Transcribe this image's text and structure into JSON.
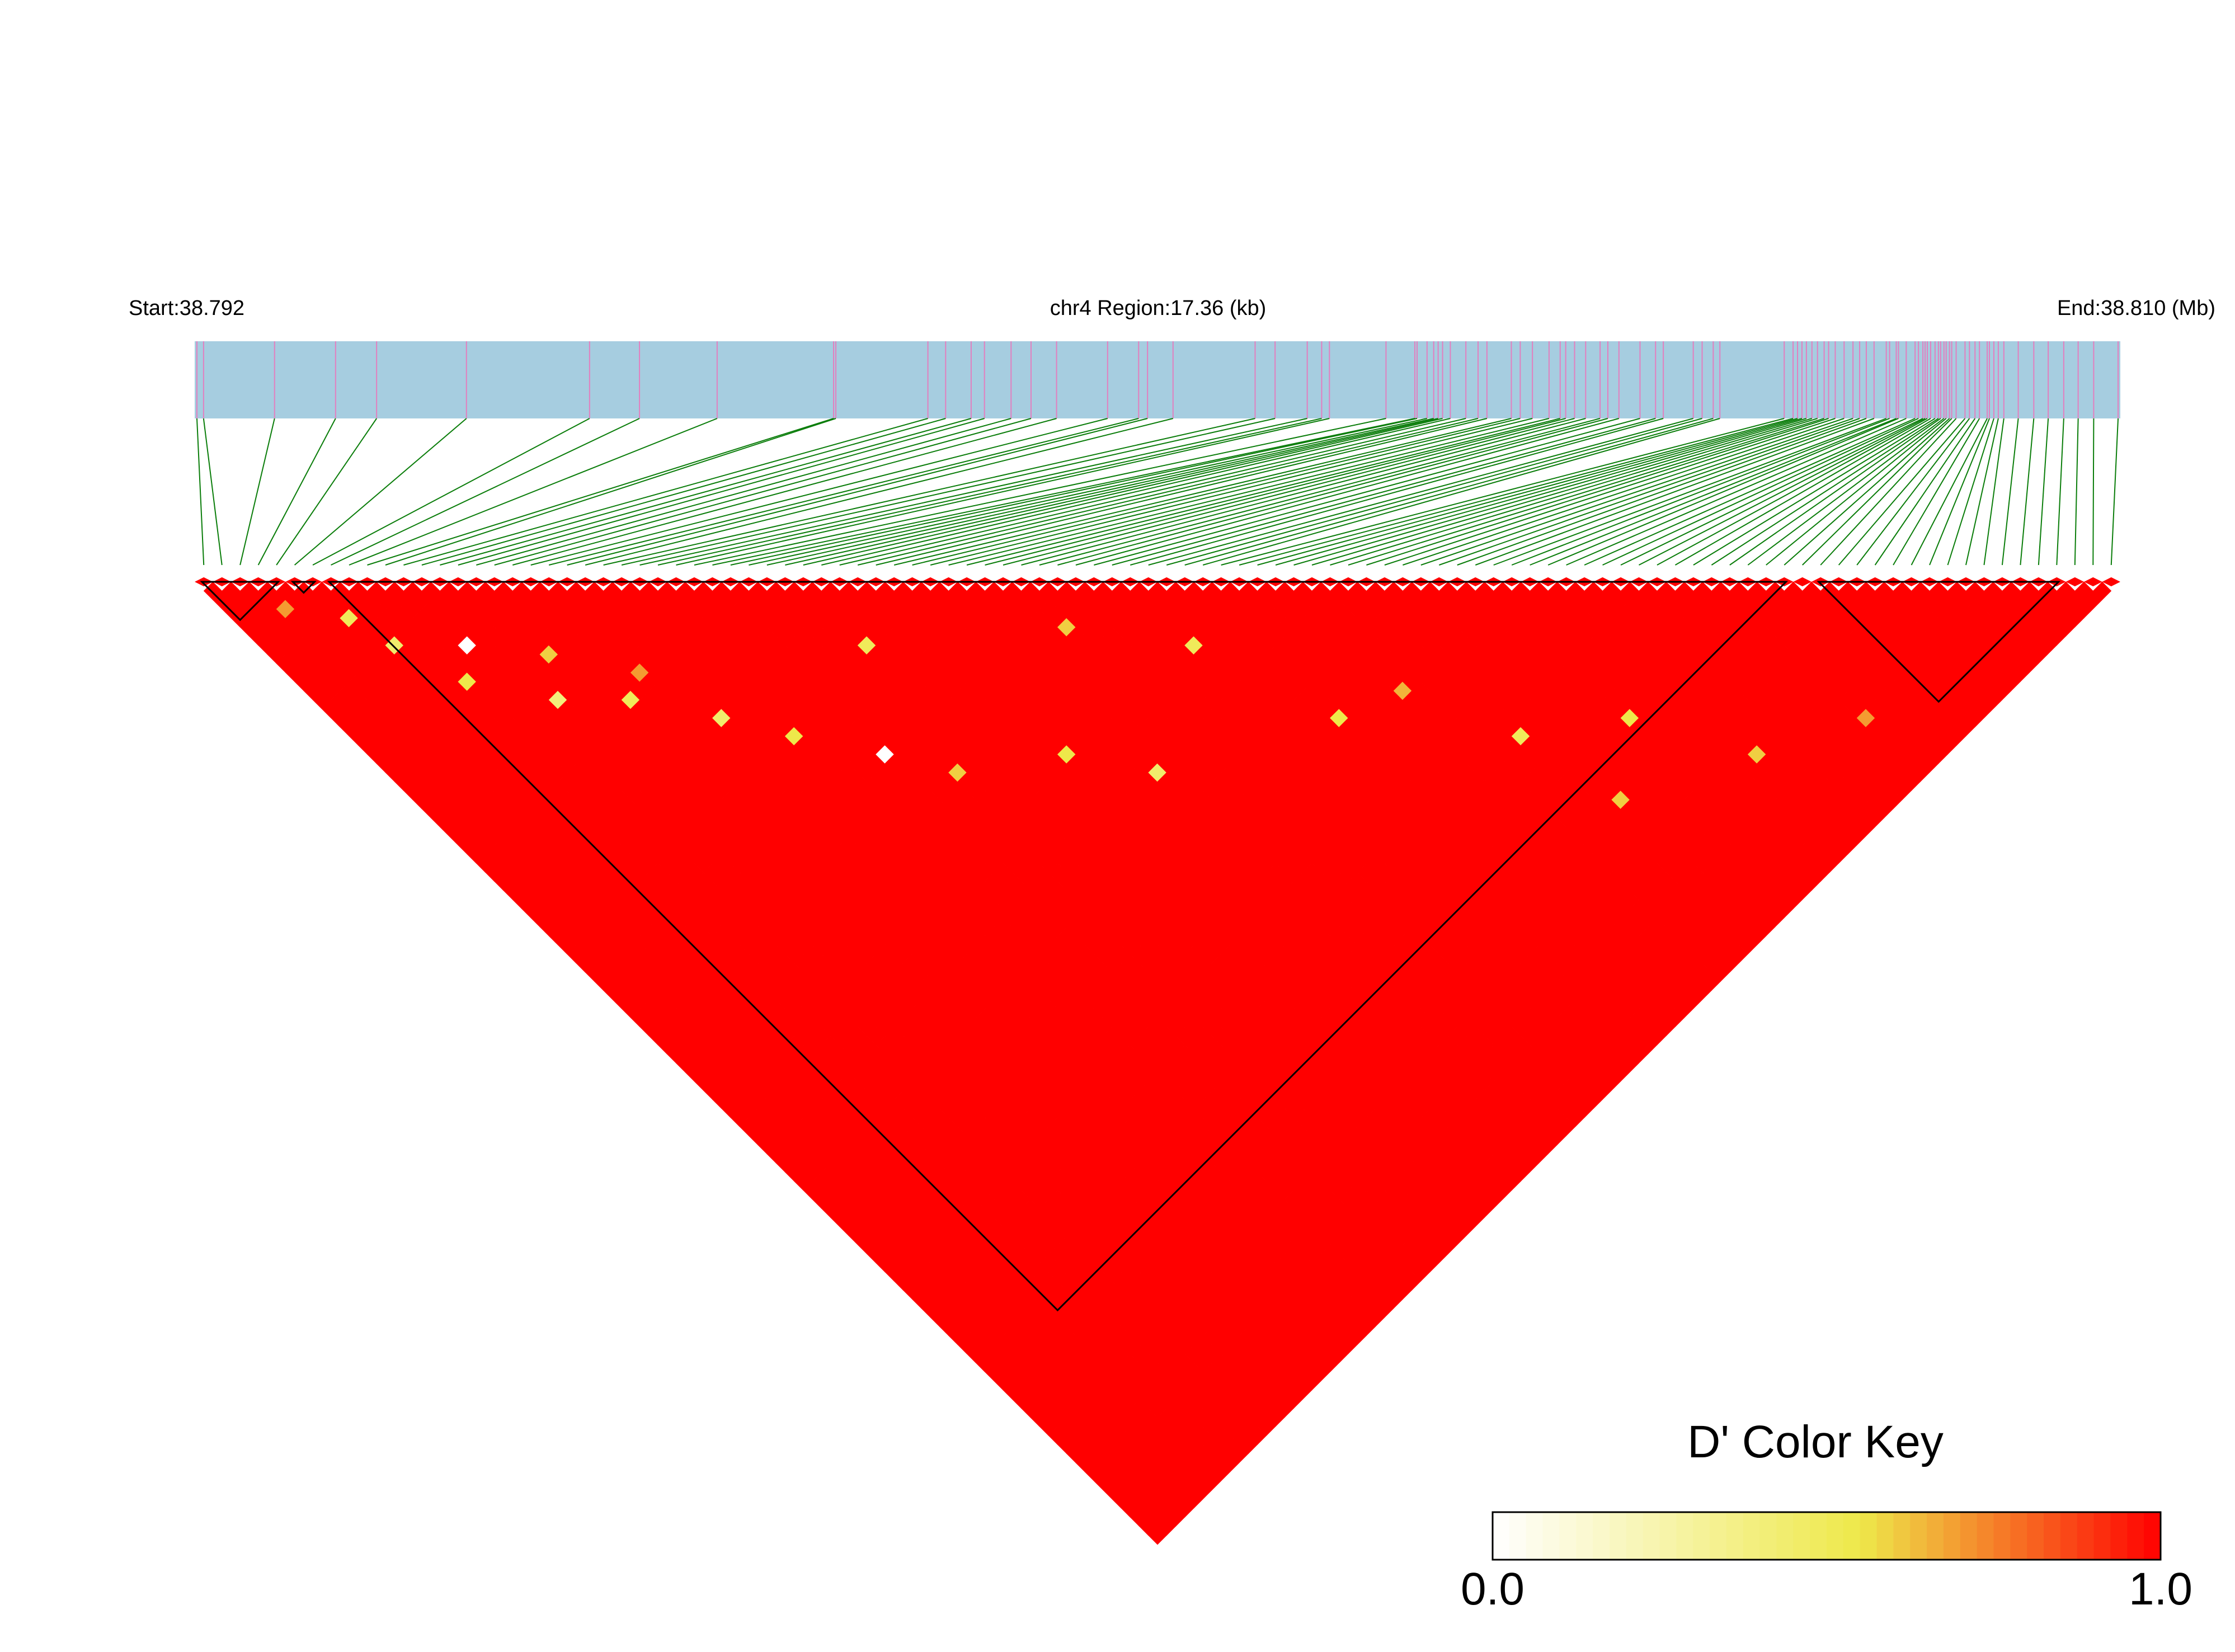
{
  "header": {
    "start_label": "Start:38.792",
    "region_label": "chr4 Region:17.36 (kb)",
    "end_label": "End:38.810 (Mb)"
  },
  "colors": {
    "track_fill": "#a6cde0",
    "snp_tick": "#e27fbf",
    "connector": "#0a7d0a",
    "ld_high": "#ff0000",
    "block_outline": "#000000",
    "key_low": "#ffffff",
    "key_mid": "#eee84a",
    "key_high": "#ff0000"
  },
  "color_key": {
    "title": "D' Color Key",
    "min_label": "0.0",
    "max_label": "1.0",
    "min": 0.0,
    "max": 1.0
  },
  "chart_data": {
    "type": "heatmap",
    "description_type": "LD triangle (pairwise D')",
    "chromosome": "chr4",
    "region_start_mb": 38.792,
    "region_end_mb": 38.81,
    "region_length_kb": 17.36,
    "snp_count": 106,
    "snp_positions_kb": [
      0.02,
      0.08,
      0.72,
      1.27,
      1.64,
      2.45,
      3.56,
      4.01,
      4.71,
      5.76,
      5.78,
      6.61,
      6.77,
      7.0,
      7.12,
      7.36,
      7.54,
      7.77,
      8.23,
      8.51,
      8.59,
      8.82,
      9.56,
      9.74,
      10.03,
      10.16,
      10.23,
      10.74,
      11.0,
      11.02,
      11.11,
      11.17,
      11.21,
      11.25,
      11.32,
      11.46,
      11.57,
      11.65,
      11.87,
      11.95,
      12.06,
      12.21,
      12.31,
      12.36,
      12.44,
      12.54,
      12.67,
      12.74,
      12.84,
      13.03,
      13.17,
      13.24,
      13.51,
      13.59,
      13.69,
      13.75,
      14.33,
      14.41,
      14.45,
      14.49,
      14.53,
      14.58,
      14.63,
      14.69,
      14.73,
      14.79,
      14.87,
      14.95,
      15.01,
      15.07,
      15.14,
      15.25,
      15.28,
      15.34,
      15.36,
      15.43,
      15.51,
      15.54,
      15.58,
      15.6,
      15.62,
      15.65,
      15.69,
      15.72,
      15.74,
      15.77,
      15.79,
      15.82,
      15.84,
      15.88,
      15.96,
      16.0,
      16.05,
      16.09,
      16.16,
      16.18,
      16.22,
      16.26,
      16.31,
      16.44,
      16.58,
      16.71,
      16.85,
      16.98,
      17.12,
      17.34
    ],
    "blocks": [
      {
        "first_snp": 1,
        "last_snp": 5,
        "d_prime": 1.0
      },
      {
        "first_snp": 6,
        "last_snp": 7,
        "d_prime": 1.0
      },
      {
        "first_snp": 8,
        "last_snp": 88,
        "d_prime": 1.0
      },
      {
        "first_snp": 90,
        "last_snp": 103,
        "d_prime": 1.0
      }
    ],
    "dominant_d_prime": 1.0,
    "low_d_prime_pairs": [
      {
        "i": 3,
        "j": 6,
        "d_prime": 0.7
      },
      {
        "i": 6,
        "j": 10,
        "d_prime": 0.5
      },
      {
        "i": 7,
        "j": 14,
        "d_prime": 0.45
      },
      {
        "i": 9,
        "j": 20,
        "d_prime": 0.55
      },
      {
        "i": 11,
        "j": 18,
        "d_prime": 0.0
      },
      {
        "i": 13,
        "j": 26,
        "d_prime": 0.4
      },
      {
        "i": 15,
        "j": 23,
        "d_prime": 0.6
      },
      {
        "i": 17,
        "j": 30,
        "d_prime": 0.5
      },
      {
        "i": 19,
        "j": 29,
        "d_prime": 0.7
      },
      {
        "i": 21,
        "j": 36,
        "d_prime": 0.45
      },
      {
        "i": 24,
        "j": 41,
        "d_prime": 0.55
      },
      {
        "i": 28,
        "j": 47,
        "d_prime": 0.0
      },
      {
        "i": 31,
        "j": 52,
        "d_prime": 0.6
      },
      {
        "i": 33,
        "j": 40,
        "d_prime": 0.5
      },
      {
        "i": 38,
        "j": 57,
        "d_prime": 0.55
      },
      {
        "i": 42,
        "j": 63,
        "d_prime": 0.45
      },
      {
        "i": 45,
        "j": 50,
        "d_prime": 0.6
      },
      {
        "i": 51,
        "j": 58,
        "d_prime": 0.5
      },
      {
        "i": 55,
        "j": 70,
        "d_prime": 0.55
      },
      {
        "i": 60,
        "j": 72,
        "d_prime": 0.65
      },
      {
        "i": 64,
        "j": 81,
        "d_prime": 0.5
      },
      {
        "i": 66,
        "j": 90,
        "d_prime": 0.6
      },
      {
        "i": 71,
        "j": 86,
        "d_prime": 0.55
      },
      {
        "i": 76,
        "j": 95,
        "d_prime": 0.6
      },
      {
        "i": 84,
        "j": 99,
        "d_prime": 0.7
      }
    ]
  }
}
